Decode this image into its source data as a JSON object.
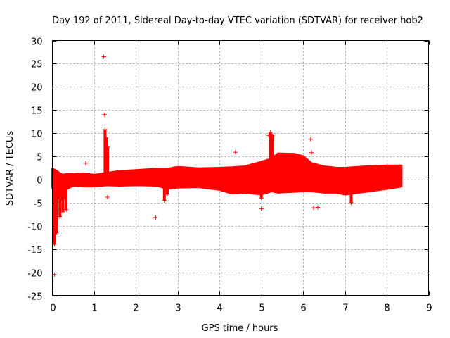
{
  "chart_data": {
    "type": "scatter",
    "title": "Day 192 of 2011, Sidereal Day-to-day VTEC variation (SDTVAR) for receiver hob2",
    "xlabel": "GPS time / hours",
    "ylabel": "SDTVAR / TECUs",
    "xlim": [
      0,
      9
    ],
    "ylim": [
      -25,
      30
    ],
    "x_ticks": [
      0,
      1,
      2,
      3,
      4,
      5,
      6,
      7,
      8,
      9
    ],
    "y_ticks": [
      -25,
      -20,
      -15,
      -10,
      -5,
      0,
      5,
      10,
      15,
      20,
      25,
      30
    ],
    "grid": true,
    "marker": "+",
    "color": "#ff0000",
    "series": [
      {
        "name": "SDTVAR hob2",
        "band": [
          {
            "x": 0.0,
            "lo": -1.8,
            "hi": 2.3
          },
          {
            "x": 0.08,
            "lo": -2.0,
            "hi": 2.0
          },
          {
            "x": 0.15,
            "lo": -4.0,
            "hi": 1.5
          },
          {
            "x": 0.25,
            "lo": -4.5,
            "hi": 1.0
          },
          {
            "x": 0.35,
            "lo": -2.0,
            "hi": 1.2
          },
          {
            "x": 0.5,
            "lo": -1.3,
            "hi": 1.2
          },
          {
            "x": 0.75,
            "lo": -1.5,
            "hi": 1.3
          },
          {
            "x": 1.0,
            "lo": -1.5,
            "hi": 1.0
          },
          {
            "x": 1.3,
            "lo": -1.2,
            "hi": 1.4
          },
          {
            "x": 1.6,
            "lo": -1.3,
            "hi": 1.8
          },
          {
            "x": 2.0,
            "lo": -1.2,
            "hi": 2.0
          },
          {
            "x": 2.5,
            "lo": -1.3,
            "hi": 2.3
          },
          {
            "x": 2.75,
            "lo": -2.0,
            "hi": 2.3
          },
          {
            "x": 3.0,
            "lo": -1.7,
            "hi": 2.7
          },
          {
            "x": 3.5,
            "lo": -1.6,
            "hi": 2.4
          },
          {
            "x": 4.0,
            "lo": -2.2,
            "hi": 2.5
          },
          {
            "x": 4.3,
            "lo": -3.0,
            "hi": 2.6
          },
          {
            "x": 4.6,
            "lo": -2.8,
            "hi": 2.8
          },
          {
            "x": 5.0,
            "lo": -3.2,
            "hi": 3.8
          },
          {
            "x": 5.25,
            "lo": -2.5,
            "hi": 4.5
          },
          {
            "x": 5.4,
            "lo": -2.8,
            "hi": 5.6
          },
          {
            "x": 5.8,
            "lo": -2.6,
            "hi": 5.5
          },
          {
            "x": 6.0,
            "lo": -2.5,
            "hi": 5.0
          },
          {
            "x": 6.2,
            "lo": -2.5,
            "hi": 3.5
          },
          {
            "x": 6.5,
            "lo": -2.8,
            "hi": 2.8
          },
          {
            "x": 6.8,
            "lo": -2.8,
            "hi": 2.5
          },
          {
            "x": 7.0,
            "lo": -3.2,
            "hi": 2.5
          },
          {
            "x": 7.5,
            "lo": -2.6,
            "hi": 2.8
          },
          {
            "x": 8.0,
            "lo": -2.0,
            "hi": 3.0
          },
          {
            "x": 8.35,
            "lo": -1.5,
            "hi": 3.0
          }
        ],
        "excursions": [
          {
            "x": 0.05,
            "from": -1.5,
            "to": -14.0
          },
          {
            "x": 0.1,
            "from": -2.0,
            "to": -11.5
          },
          {
            "x": 0.18,
            "from": -2.5,
            "to": -8.0
          },
          {
            "x": 0.25,
            "from": -2.5,
            "to": -7.0
          },
          {
            "x": 0.33,
            "from": -2.0,
            "to": -6.5
          },
          {
            "x": 1.26,
            "from": 1.0,
            "to": 10.8
          },
          {
            "x": 1.29,
            "from": 1.0,
            "to": 9.0
          },
          {
            "x": 1.32,
            "from": -1.0,
            "to": 7.0
          },
          {
            "x": 2.68,
            "from": -1.5,
            "to": -4.5
          },
          {
            "x": 2.75,
            "from": -1.5,
            "to": -3.2
          },
          {
            "x": 5.0,
            "from": -3.0,
            "to": -4.0
          },
          {
            "x": 5.22,
            "from": 3.0,
            "to": 10.2
          },
          {
            "x": 5.27,
            "from": 3.0,
            "to": 9.5
          },
          {
            "x": 7.15,
            "from": -3.0,
            "to": -5.0
          }
        ],
        "outliers": [
          {
            "x": 0.05,
            "y": -20.5
          },
          {
            "x": 0.1,
            "y": -8.5
          },
          {
            "x": 0.8,
            "y": 3.5
          },
          {
            "x": 1.23,
            "y": 26.5
          },
          {
            "x": 1.25,
            "y": 14.0
          },
          {
            "x": 1.32,
            "y": -3.8
          },
          {
            "x": 2.47,
            "y": -8.2
          },
          {
            "x": 4.38,
            "y": 5.9
          },
          {
            "x": 5.0,
            "y": -6.3
          },
          {
            "x": 5.18,
            "y": 9.5
          },
          {
            "x": 6.18,
            "y": 8.7
          },
          {
            "x": 6.2,
            "y": 5.8
          },
          {
            "x": 6.25,
            "y": -6.1
          },
          {
            "x": 6.35,
            "y": -6.0
          },
          {
            "x": 7.15,
            "y": -5.0
          }
        ]
      }
    ]
  }
}
